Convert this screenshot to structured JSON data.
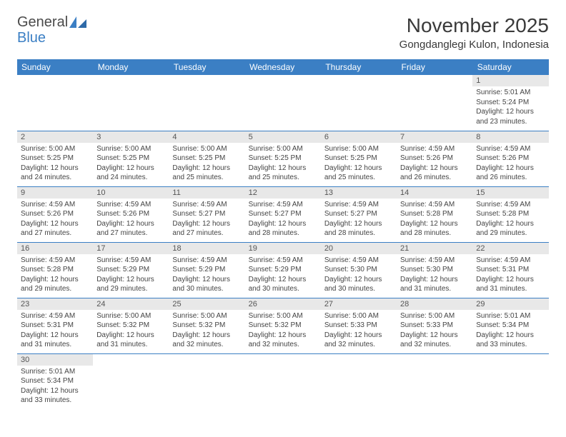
{
  "brand": {
    "part1": "General",
    "part2": "Blue"
  },
  "title": "November 2025",
  "location": "Gongdanglegi Kulon, Indonesia",
  "colors": {
    "header_bg": "#3b7fc4",
    "header_text": "#ffffff",
    "daynum_bg": "#e8e8e8",
    "border": "#3b7fc4",
    "text": "#444444"
  },
  "typography": {
    "title_fontsize": 28,
    "location_fontsize": 15,
    "header_fontsize": 12,
    "cell_fontsize": 10
  },
  "weekdays": [
    "Sunday",
    "Monday",
    "Tuesday",
    "Wednesday",
    "Thursday",
    "Friday",
    "Saturday"
  ],
  "weeks": [
    [
      null,
      null,
      null,
      null,
      null,
      null,
      {
        "n": "1",
        "sunrise": "Sunrise: 5:01 AM",
        "sunset": "Sunset: 5:24 PM",
        "daylight": "Daylight: 12 hours and 23 minutes."
      }
    ],
    [
      {
        "n": "2",
        "sunrise": "Sunrise: 5:00 AM",
        "sunset": "Sunset: 5:25 PM",
        "daylight": "Daylight: 12 hours and 24 minutes."
      },
      {
        "n": "3",
        "sunrise": "Sunrise: 5:00 AM",
        "sunset": "Sunset: 5:25 PM",
        "daylight": "Daylight: 12 hours and 24 minutes."
      },
      {
        "n": "4",
        "sunrise": "Sunrise: 5:00 AM",
        "sunset": "Sunset: 5:25 PM",
        "daylight": "Daylight: 12 hours and 25 minutes."
      },
      {
        "n": "5",
        "sunrise": "Sunrise: 5:00 AM",
        "sunset": "Sunset: 5:25 PM",
        "daylight": "Daylight: 12 hours and 25 minutes."
      },
      {
        "n": "6",
        "sunrise": "Sunrise: 5:00 AM",
        "sunset": "Sunset: 5:25 PM",
        "daylight": "Daylight: 12 hours and 25 minutes."
      },
      {
        "n": "7",
        "sunrise": "Sunrise: 4:59 AM",
        "sunset": "Sunset: 5:26 PM",
        "daylight": "Daylight: 12 hours and 26 minutes."
      },
      {
        "n": "8",
        "sunrise": "Sunrise: 4:59 AM",
        "sunset": "Sunset: 5:26 PM",
        "daylight": "Daylight: 12 hours and 26 minutes."
      }
    ],
    [
      {
        "n": "9",
        "sunrise": "Sunrise: 4:59 AM",
        "sunset": "Sunset: 5:26 PM",
        "daylight": "Daylight: 12 hours and 27 minutes."
      },
      {
        "n": "10",
        "sunrise": "Sunrise: 4:59 AM",
        "sunset": "Sunset: 5:26 PM",
        "daylight": "Daylight: 12 hours and 27 minutes."
      },
      {
        "n": "11",
        "sunrise": "Sunrise: 4:59 AM",
        "sunset": "Sunset: 5:27 PM",
        "daylight": "Daylight: 12 hours and 27 minutes."
      },
      {
        "n": "12",
        "sunrise": "Sunrise: 4:59 AM",
        "sunset": "Sunset: 5:27 PM",
        "daylight": "Daylight: 12 hours and 28 minutes."
      },
      {
        "n": "13",
        "sunrise": "Sunrise: 4:59 AM",
        "sunset": "Sunset: 5:27 PM",
        "daylight": "Daylight: 12 hours and 28 minutes."
      },
      {
        "n": "14",
        "sunrise": "Sunrise: 4:59 AM",
        "sunset": "Sunset: 5:28 PM",
        "daylight": "Daylight: 12 hours and 28 minutes."
      },
      {
        "n": "15",
        "sunrise": "Sunrise: 4:59 AM",
        "sunset": "Sunset: 5:28 PM",
        "daylight": "Daylight: 12 hours and 29 minutes."
      }
    ],
    [
      {
        "n": "16",
        "sunrise": "Sunrise: 4:59 AM",
        "sunset": "Sunset: 5:28 PM",
        "daylight": "Daylight: 12 hours and 29 minutes."
      },
      {
        "n": "17",
        "sunrise": "Sunrise: 4:59 AM",
        "sunset": "Sunset: 5:29 PM",
        "daylight": "Daylight: 12 hours and 29 minutes."
      },
      {
        "n": "18",
        "sunrise": "Sunrise: 4:59 AM",
        "sunset": "Sunset: 5:29 PM",
        "daylight": "Daylight: 12 hours and 30 minutes."
      },
      {
        "n": "19",
        "sunrise": "Sunrise: 4:59 AM",
        "sunset": "Sunset: 5:29 PM",
        "daylight": "Daylight: 12 hours and 30 minutes."
      },
      {
        "n": "20",
        "sunrise": "Sunrise: 4:59 AM",
        "sunset": "Sunset: 5:30 PM",
        "daylight": "Daylight: 12 hours and 30 minutes."
      },
      {
        "n": "21",
        "sunrise": "Sunrise: 4:59 AM",
        "sunset": "Sunset: 5:30 PM",
        "daylight": "Daylight: 12 hours and 31 minutes."
      },
      {
        "n": "22",
        "sunrise": "Sunrise: 4:59 AM",
        "sunset": "Sunset: 5:31 PM",
        "daylight": "Daylight: 12 hours and 31 minutes."
      }
    ],
    [
      {
        "n": "23",
        "sunrise": "Sunrise: 4:59 AM",
        "sunset": "Sunset: 5:31 PM",
        "daylight": "Daylight: 12 hours and 31 minutes."
      },
      {
        "n": "24",
        "sunrise": "Sunrise: 5:00 AM",
        "sunset": "Sunset: 5:32 PM",
        "daylight": "Daylight: 12 hours and 31 minutes."
      },
      {
        "n": "25",
        "sunrise": "Sunrise: 5:00 AM",
        "sunset": "Sunset: 5:32 PM",
        "daylight": "Daylight: 12 hours and 32 minutes."
      },
      {
        "n": "26",
        "sunrise": "Sunrise: 5:00 AM",
        "sunset": "Sunset: 5:32 PM",
        "daylight": "Daylight: 12 hours and 32 minutes."
      },
      {
        "n": "27",
        "sunrise": "Sunrise: 5:00 AM",
        "sunset": "Sunset: 5:33 PM",
        "daylight": "Daylight: 12 hours and 32 minutes."
      },
      {
        "n": "28",
        "sunrise": "Sunrise: 5:00 AM",
        "sunset": "Sunset: 5:33 PM",
        "daylight": "Daylight: 12 hours and 32 minutes."
      },
      {
        "n": "29",
        "sunrise": "Sunrise: 5:01 AM",
        "sunset": "Sunset: 5:34 PM",
        "daylight": "Daylight: 12 hours and 33 minutes."
      }
    ],
    [
      {
        "n": "30",
        "sunrise": "Sunrise: 5:01 AM",
        "sunset": "Sunset: 5:34 PM",
        "daylight": "Daylight: 12 hours and 33 minutes."
      },
      null,
      null,
      null,
      null,
      null,
      null
    ]
  ]
}
